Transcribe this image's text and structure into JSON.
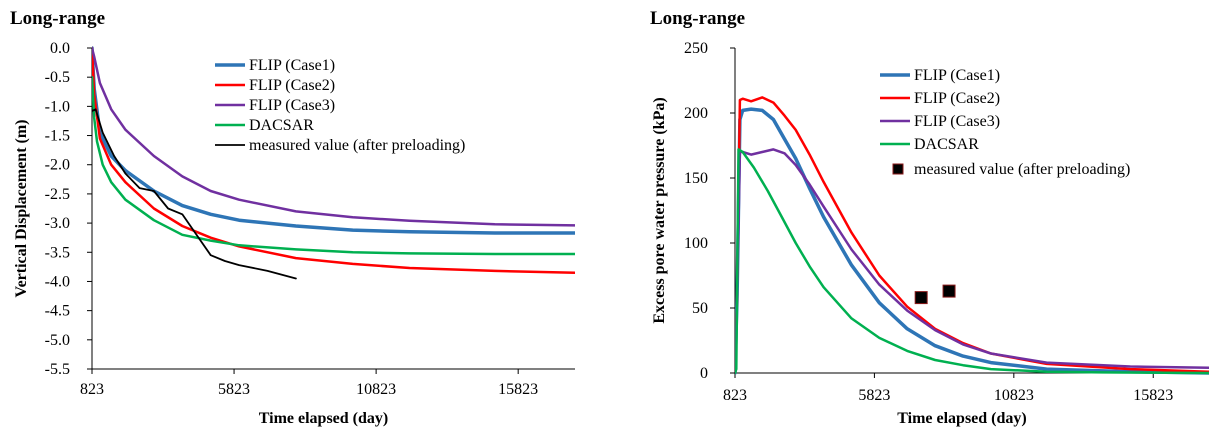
{
  "charts": [
    {
      "type": "line",
      "title": "Long-range",
      "xlabel": "Time elapsed   (day)",
      "ylabel": "Vertical Displacement (m)",
      "xlim": [
        823,
        17823
      ],
      "ylim": [
        -5.5,
        0.0
      ],
      "xticks": [
        "823",
        "5823",
        "10823",
        "15823"
      ],
      "yticks": [
        "0.0",
        "-0.5",
        "-1.0",
        "-1.5",
        "-2.0",
        "-2.5",
        "-3.0",
        "-3.5",
        "-4.0",
        "-4.5",
        "-5.0",
        "-5.5"
      ],
      "legend_position": "top-right",
      "series": [
        {
          "name": "FLIP (Case1)",
          "color": "#2E75B6",
          "width": 3.5,
          "x": [
            823,
            900,
            1100,
            1500,
            2000,
            3000,
            4000,
            5000,
            6000,
            8000,
            10000,
            12000,
            15000,
            17823
          ],
          "y": [
            0.0,
            -0.7,
            -1.45,
            -1.85,
            -2.1,
            -2.45,
            -2.7,
            -2.85,
            -2.95,
            -3.05,
            -3.12,
            -3.15,
            -3.17,
            -3.17
          ]
        },
        {
          "name": "FLIP (Case2)",
          "color": "#FF0000",
          "width": 2.5,
          "x": [
            823,
            900,
            1100,
            1500,
            2000,
            3000,
            4000,
            5000,
            6000,
            8000,
            10000,
            12000,
            15000,
            17823
          ],
          "y": [
            0.0,
            -0.8,
            -1.55,
            -2.0,
            -2.3,
            -2.75,
            -3.05,
            -3.25,
            -3.4,
            -3.6,
            -3.7,
            -3.77,
            -3.82,
            -3.85
          ]
        },
        {
          "name": "FLIP (Case3)",
          "color": "#7030A0",
          "width": 2.5,
          "x": [
            823,
            900,
            1100,
            1500,
            2000,
            3000,
            4000,
            5000,
            6000,
            8000,
            10000,
            12000,
            15000,
            17823
          ],
          "y": [
            0.0,
            -0.15,
            -0.6,
            -1.05,
            -1.4,
            -1.85,
            -2.2,
            -2.45,
            -2.6,
            -2.8,
            -2.9,
            -2.96,
            -3.02,
            -3.04
          ]
        },
        {
          "name": "DACSAR",
          "color": "#00B050",
          "width": 2.5,
          "x": [
            823,
            900,
            1000,
            1200,
            1500,
            2000,
            3000,
            4000,
            5000,
            6000,
            8000,
            10000,
            12000,
            15000,
            17823
          ],
          "y": [
            -0.5,
            -1.2,
            -1.6,
            -2.0,
            -2.3,
            -2.6,
            -2.95,
            -3.2,
            -3.3,
            -3.38,
            -3.45,
            -3.5,
            -3.52,
            -3.53,
            -3.53
          ]
        },
        {
          "name": "measured value (after preloading)",
          "color": "#000000",
          "width": 1.8,
          "x": [
            823,
            950,
            1200,
            1600,
            2000,
            2500,
            3000,
            3500,
            4000,
            4500,
            5000,
            5500,
            6000,
            7000,
            8000
          ],
          "y": [
            -1.08,
            -1.05,
            -1.45,
            -1.85,
            -2.15,
            -2.4,
            -2.45,
            -2.75,
            -2.85,
            -3.2,
            -3.55,
            -3.65,
            -3.72,
            -3.82,
            -3.95
          ]
        }
      ]
    },
    {
      "type": "line",
      "title": "Long-range",
      "xlabel": "Time elapsed (day)",
      "ylabel": "Excess pore water pressure (kPa)",
      "xlim": [
        823,
        17823
      ],
      "ylim": [
        0,
        250
      ],
      "xticks": [
        "823",
        "5823",
        "10823",
        "15823"
      ],
      "yticks": [
        "0",
        "50",
        "100",
        "150",
        "200",
        "250"
      ],
      "legend_position": "top-right",
      "series": [
        {
          "name": "FLIP (Case1)",
          "color": "#2E75B6",
          "width": 3.5,
          "x": [
            823,
            900,
            1000,
            1100,
            1400,
            1800,
            2200,
            2600,
            3000,
            3500,
            4000,
            5000,
            6000,
            7000,
            8000,
            9000,
            10000,
            12000,
            15000,
            17823
          ],
          "y": [
            0,
            60,
            195,
            202,
            203,
            202,
            195,
            180,
            165,
            142,
            120,
            83,
            54,
            34,
            21,
            13,
            8,
            3,
            1,
            0
          ]
        },
        {
          "name": "FLIP (Case2)",
          "color": "#FF0000",
          "width": 2.5,
          "x": [
            823,
            900,
            1000,
            1100,
            1400,
            1800,
            2200,
            2600,
            3000,
            3500,
            4000,
            5000,
            6000,
            7000,
            8000,
            9000,
            10000,
            12000,
            15000,
            17823
          ],
          "y": [
            0,
            60,
            210,
            211,
            209,
            212,
            208,
            198,
            187,
            168,
            147,
            108,
            75,
            51,
            34,
            23,
            15,
            7,
            3,
            1
          ]
        },
        {
          "name": "FLIP (Case3)",
          "color": "#7030A0",
          "width": 2.5,
          "x": [
            823,
            900,
            1000,
            1100,
            1400,
            1800,
            2200,
            2600,
            3000,
            3500,
            4000,
            5000,
            6000,
            7000,
            8000,
            9000,
            10000,
            12000,
            15000,
            17823
          ],
          "y": [
            0,
            60,
            170,
            170,
            168,
            170,
            172,
            169,
            160,
            145,
            128,
            95,
            68,
            48,
            33,
            22,
            15,
            8,
            5,
            4
          ]
        },
        {
          "name": "DACSAR",
          "color": "#00B050",
          "width": 2.5,
          "x": [
            823,
            870,
            950,
            1100,
            1500,
            2000,
            2500,
            3000,
            3500,
            4000,
            5000,
            6000,
            7000,
            8000,
            9000,
            10000,
            11000,
            12000,
            14000,
            17823
          ],
          "y": [
            0,
            3,
            172,
            170,
            158,
            140,
            120,
            100,
            82,
            66,
            42,
            27,
            17,
            10,
            6,
            3,
            2,
            1,
            0.5,
            0
          ]
        }
      ],
      "points": [
        {
          "name": "measured value (after preloading)",
          "color": "#000000",
          "x": [
            7500,
            8500
          ],
          "y": [
            58,
            63
          ]
        }
      ]
    }
  ]
}
